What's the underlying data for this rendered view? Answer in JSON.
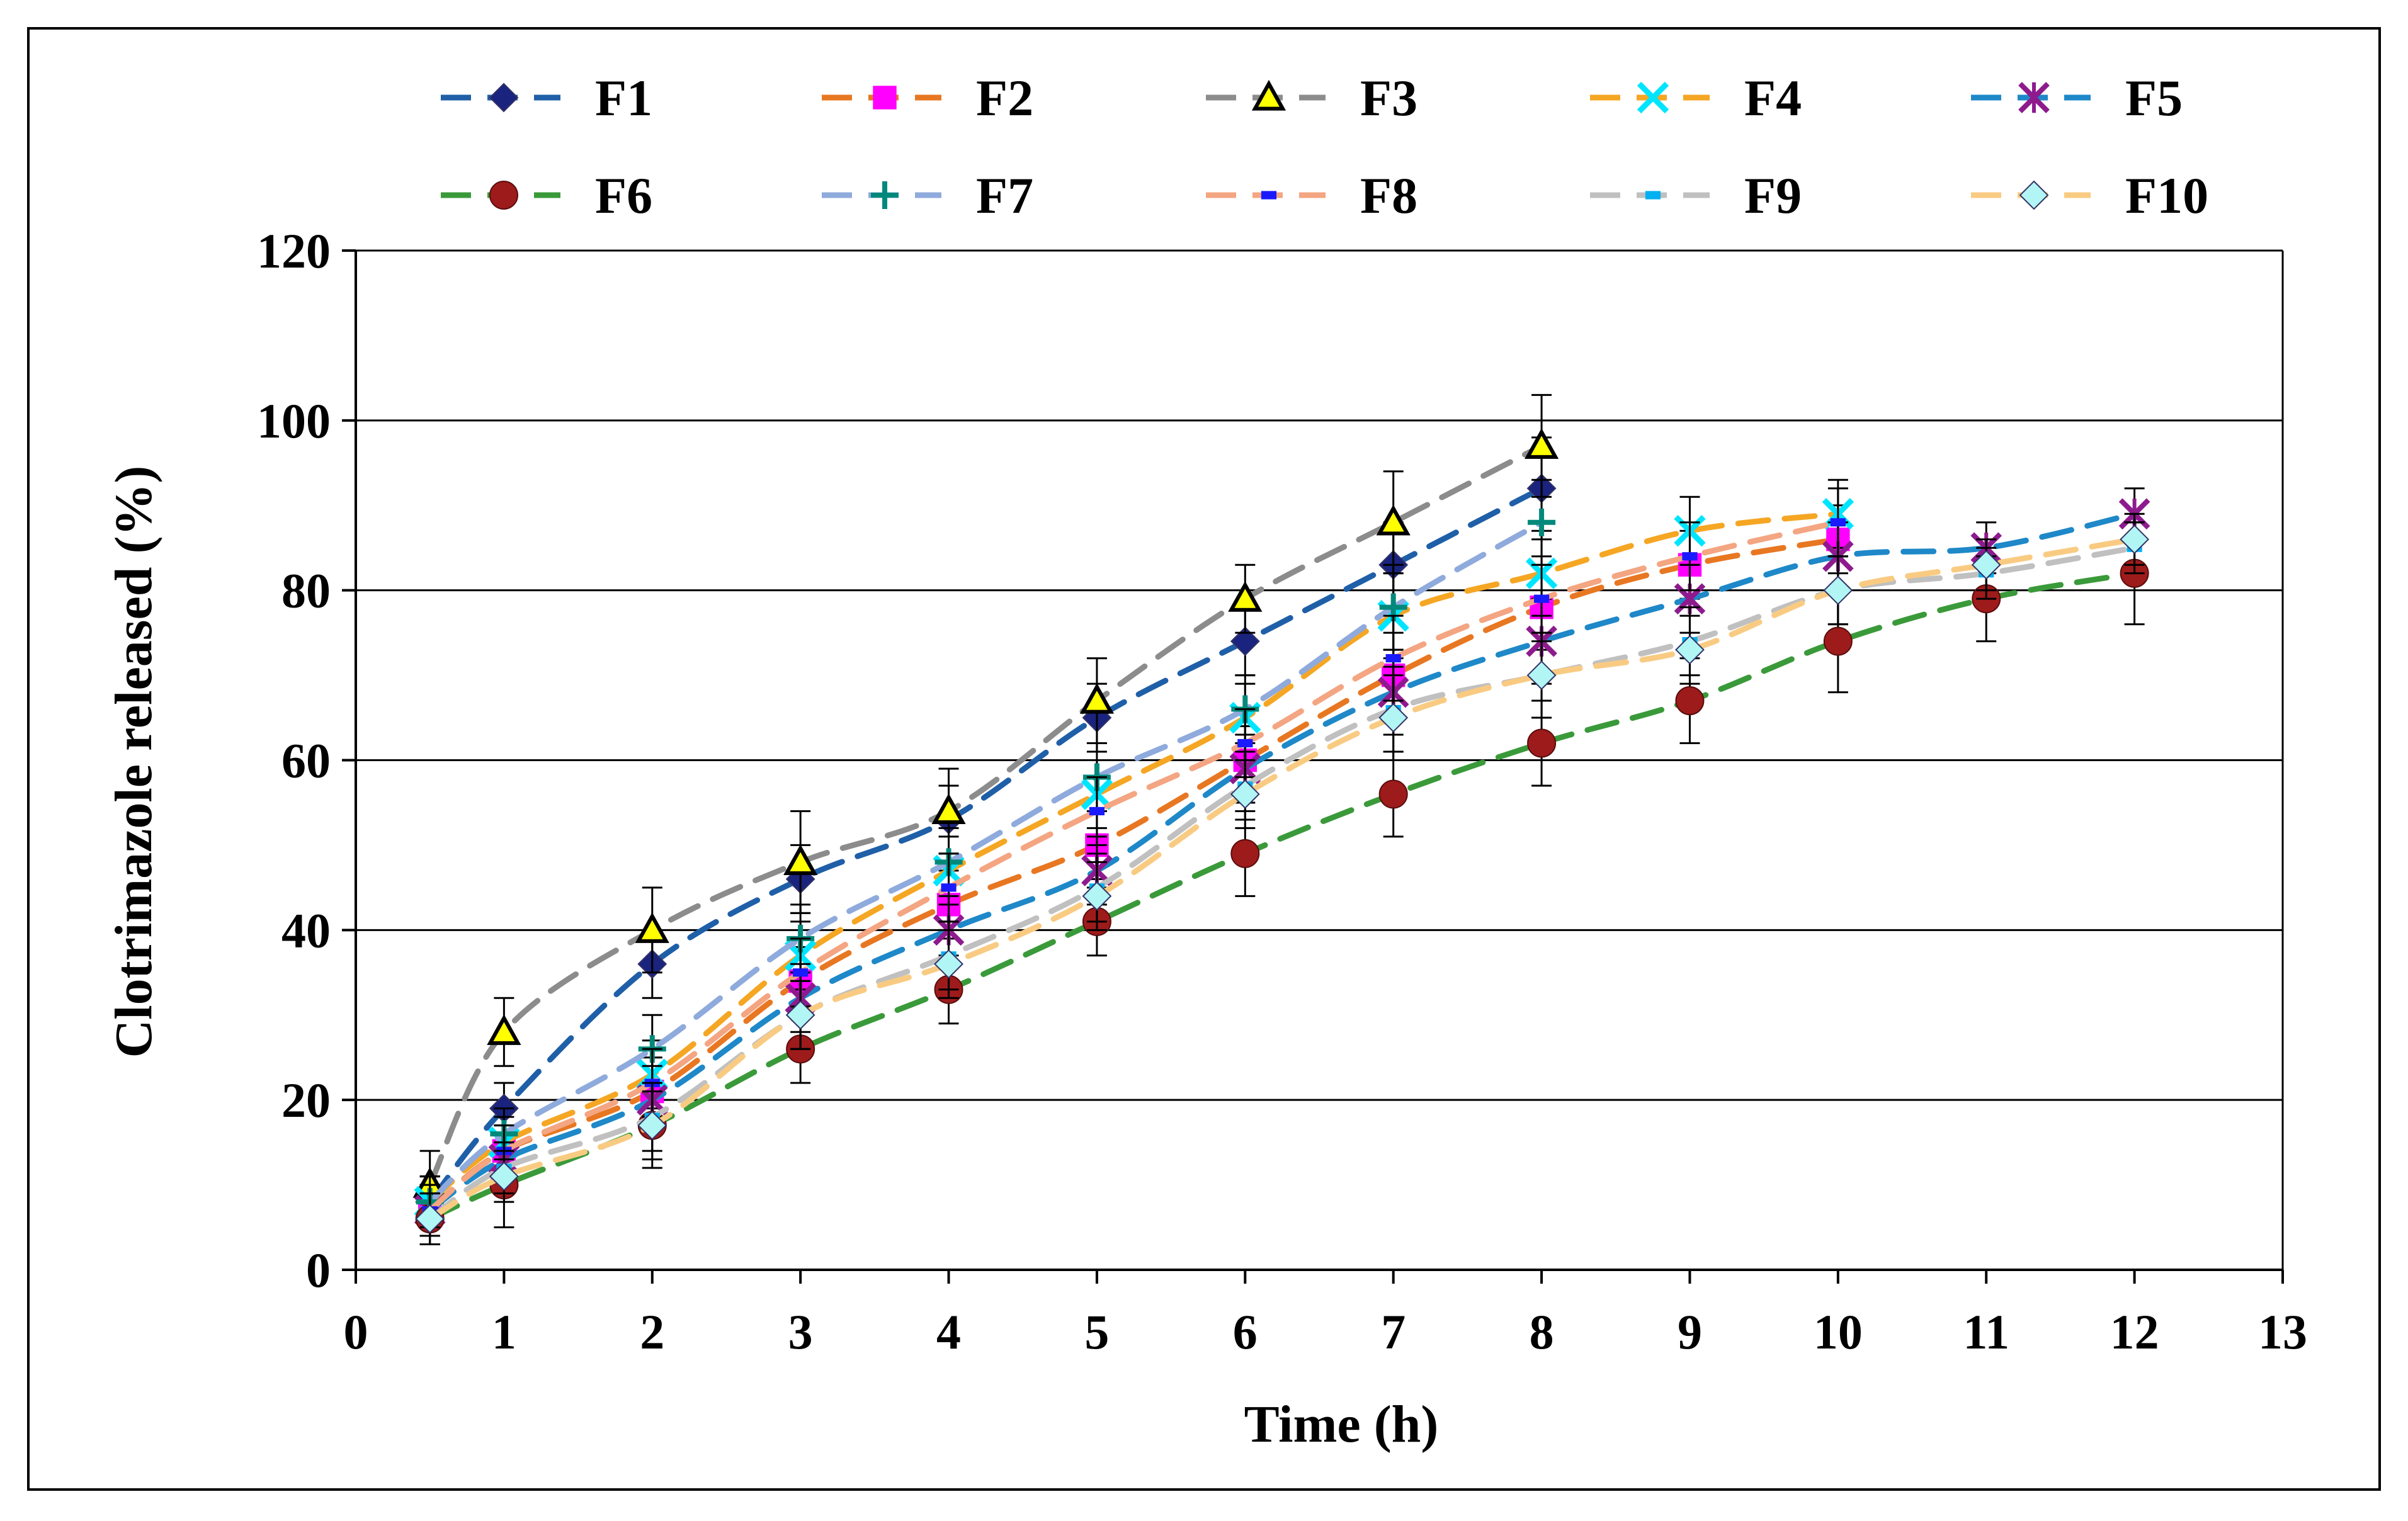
{
  "chart_data": {
    "type": "line",
    "title": "",
    "xlabel": "Time (h)",
    "ylabel": "Clotrimazole  released (%)",
    "xlim": [
      0,
      13
    ],
    "ylim": [
      0,
      120
    ],
    "xticks": [
      "0",
      "1",
      "2",
      "3",
      "4",
      "5",
      "6",
      "7",
      "8",
      "9",
      "10",
      "11",
      "12",
      "13"
    ],
    "yticks": [
      "0",
      "20",
      "40",
      "60",
      "80",
      "100",
      "120"
    ],
    "grid": "horizontal",
    "legend_position": "top",
    "series": [
      {
        "name": "F1",
        "color": "#1f5fa8",
        "marker": "diamond",
        "marker_color": "#1a237e",
        "dash": "long",
        "x": [
          0.5,
          1,
          2,
          3,
          4,
          5,
          6,
          7,
          8
        ],
        "y": [
          8,
          19,
          36,
          46,
          53,
          65,
          74,
          83,
          92
        ],
        "err": [
          3,
          3,
          4,
          4,
          4,
          4,
          4,
          5,
          6
        ]
      },
      {
        "name": "F2",
        "color": "#e87722",
        "marker": "square",
        "marker_color": "#ff00ff",
        "dash": "long",
        "x": [
          0.5,
          1,
          2,
          3,
          4,
          5,
          6,
          7,
          8,
          9,
          10
        ],
        "y": [
          7,
          14,
          21,
          34,
          43,
          50,
          60,
          70,
          78,
          83,
          86
        ],
        "err": [
          3,
          3,
          4,
          4,
          4,
          4,
          4,
          5,
          5,
          4,
          4
        ]
      },
      {
        "name": "F3",
        "color": "#8c8c8c",
        "marker": "triangle",
        "marker_color": "#ffff00",
        "dash": "long",
        "x": [
          0.5,
          1,
          2,
          3,
          4,
          5,
          6,
          7,
          8
        ],
        "y": [
          10,
          28,
          40,
          48,
          54,
          67,
          79,
          88,
          97
        ],
        "err": [
          4,
          4,
          5,
          6,
          5,
          5,
          4,
          6,
          6
        ]
      },
      {
        "name": "F4",
        "color": "#f5a623",
        "marker": "x",
        "marker_color": "#00e5ff",
        "dash": "long",
        "x": [
          0.5,
          1,
          2,
          3,
          4,
          5,
          6,
          7,
          8,
          9,
          10
        ],
        "y": [
          8,
          15,
          23,
          37,
          47,
          56,
          65,
          77,
          82,
          87,
          89
        ],
        "err": [
          3,
          3,
          4,
          4,
          4,
          4,
          4,
          5,
          5,
          4,
          4
        ]
      },
      {
        "name": "F5",
        "color": "#1e88c8",
        "marker": "asterisk",
        "marker_color": "#8e1b8e",
        "dash": "long",
        "x": [
          0.5,
          1,
          2,
          3,
          4,
          5,
          6,
          7,
          8,
          9,
          10,
          11,
          12
        ],
        "y": [
          7,
          13,
          20,
          32,
          40,
          47,
          59,
          68,
          74,
          79,
          84,
          85,
          89
        ],
        "err": [
          3,
          3,
          4,
          4,
          4,
          4,
          4,
          5,
          5,
          4,
          4,
          3,
          3
        ]
      },
      {
        "name": "F6",
        "color": "#3a9a3a",
        "marker": "circle",
        "marker_color": "#9e1b1b",
        "dash": "long",
        "x": [
          0.5,
          1,
          2,
          3,
          4,
          5,
          6,
          7,
          8,
          9,
          10,
          11,
          12
        ],
        "y": [
          6,
          10,
          17,
          26,
          33,
          41,
          49,
          56,
          62,
          67,
          74,
          79,
          82
        ],
        "err": [
          3,
          5,
          5,
          4,
          4,
          4,
          5,
          5,
          5,
          5,
          6,
          5,
          6
        ]
      },
      {
        "name": "F7",
        "color": "#8faadc",
        "marker": "plus",
        "marker_color": "#00897b",
        "dash": "long",
        "x": [
          0.5,
          1,
          2,
          3,
          4,
          5,
          6,
          7,
          8
        ],
        "y": [
          8,
          16,
          26,
          39,
          48,
          58,
          66,
          78,
          88
        ],
        "err": [
          3,
          3,
          4,
          4,
          4,
          4,
          4,
          5,
          5
        ]
      },
      {
        "name": "F8",
        "color": "#f4a582",
        "marker": "dash",
        "marker_color": "#1a1aff",
        "dash": "long",
        "x": [
          0.5,
          1,
          2,
          3,
          4,
          5,
          6,
          7,
          8,
          9,
          10
        ],
        "y": [
          7,
          14,
          22,
          35,
          45,
          54,
          62,
          72,
          79,
          84,
          88
        ],
        "err": [
          3,
          3,
          4,
          4,
          4,
          4,
          4,
          5,
          5,
          4,
          4
        ]
      },
      {
        "name": "F9",
        "color": "#c0c0c0",
        "marker": "dash",
        "marker_color": "#00b0f0",
        "dash": "long",
        "x": [
          0.5,
          1,
          2,
          3,
          4,
          5,
          6,
          7,
          8,
          9,
          10,
          11,
          12
        ],
        "y": [
          6,
          12,
          18,
          30,
          37,
          45,
          57,
          66,
          70,
          74,
          80,
          82,
          85
        ],
        "err": [
          3,
          3,
          4,
          4,
          4,
          4,
          4,
          5,
          5,
          4,
          4,
          3,
          3
        ]
      },
      {
        "name": "F10",
        "color": "#f9cb82",
        "marker": "diamond",
        "marker_color": "#b2f5f5",
        "dash": "long",
        "x": [
          0.5,
          1,
          2,
          3,
          4,
          5,
          6,
          7,
          8,
          9,
          10,
          11,
          12
        ],
        "y": [
          6,
          11,
          17,
          30,
          36,
          44,
          56,
          65,
          70,
          73,
          80,
          83,
          86
        ],
        "err": [
          3,
          3,
          4,
          4,
          4,
          4,
          4,
          5,
          5,
          4,
          4,
          3,
          3
        ]
      }
    ]
  }
}
